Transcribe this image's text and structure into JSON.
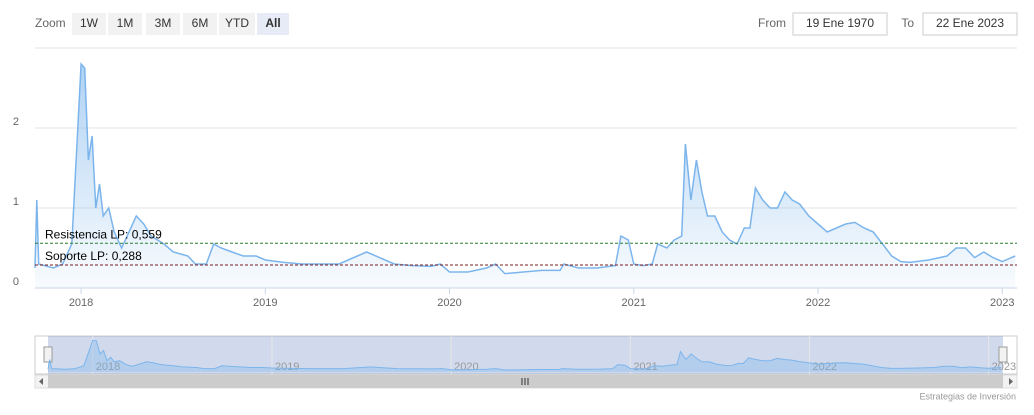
{
  "chart_data": {
    "type": "area",
    "range_selector": {
      "label": "Zoom",
      "buttons": [
        "1W",
        "1M",
        "3M",
        "6M",
        "YTD",
        "All"
      ],
      "selected": 5
    },
    "date_inputs": {
      "from_label": "From",
      "from": "19 Ene 1970",
      "to_label": "To",
      "to": "22 Ene 2023"
    },
    "x": [
      2017.75,
      2017.76,
      2017.77,
      2017.85,
      2017.9,
      2017.95,
      2018.0,
      2018.02,
      2018.04,
      2018.06,
      2018.08,
      2018.1,
      2018.12,
      2018.15,
      2018.18,
      2018.22,
      2018.26,
      2018.3,
      2018.34,
      2018.38,
      2018.45,
      2018.5,
      2018.58,
      2018.62,
      2018.68,
      2018.72,
      2018.76,
      2018.82,
      2018.88,
      2018.95,
      2019.0,
      2019.1,
      2019.2,
      2019.3,
      2019.4,
      2019.5,
      2019.55,
      2019.62,
      2019.7,
      2019.8,
      2019.9,
      2019.95,
      2020.0,
      2020.1,
      2020.2,
      2020.25,
      2020.3,
      2020.4,
      2020.5,
      2020.6,
      2020.62,
      2020.7,
      2020.8,
      2020.9,
      2020.93,
      2020.97,
      2021.0,
      2021.05,
      2021.1,
      2021.13,
      2021.18,
      2021.22,
      2021.26,
      2021.28,
      2021.31,
      2021.34,
      2021.37,
      2021.4,
      2021.44,
      2021.48,
      2021.52,
      2021.56,
      2021.6,
      2021.63,
      2021.66,
      2021.7,
      2021.74,
      2021.78,
      2021.82,
      2021.86,
      2021.9,
      2021.95,
      2022.0,
      2022.05,
      2022.1,
      2022.15,
      2022.2,
      2022.25,
      2022.3,
      2022.35,
      2022.4,
      2022.45,
      2022.5,
      2022.6,
      2022.7,
      2022.75,
      2022.8,
      2022.85,
      2022.9,
      2022.95,
      2023.0,
      2023.05,
      2023.07
    ],
    "values": [
      0.25,
      1.1,
      0.3,
      0.25,
      0.3,
      0.55,
      2.8,
      2.75,
      1.6,
      1.9,
      1.0,
      1.3,
      0.9,
      1.0,
      0.7,
      0.5,
      0.7,
      0.9,
      0.8,
      0.65,
      0.55,
      0.45,
      0.4,
      0.3,
      0.3,
      0.55,
      0.5,
      0.45,
      0.4,
      0.4,
      0.35,
      0.32,
      0.3,
      0.3,
      0.3,
      0.4,
      0.45,
      0.38,
      0.3,
      0.28,
      0.27,
      0.3,
      0.2,
      0.2,
      0.25,
      0.3,
      0.18,
      0.2,
      0.22,
      0.22,
      0.3,
      0.25,
      0.25,
      0.28,
      0.65,
      0.6,
      0.3,
      0.28,
      0.3,
      0.55,
      0.5,
      0.6,
      0.65,
      1.8,
      1.1,
      1.6,
      1.2,
      0.9,
      0.9,
      0.7,
      0.6,
      0.55,
      0.75,
      0.75,
      1.25,
      1.1,
      1.0,
      1.0,
      1.2,
      1.1,
      1.05,
      0.9,
      0.8,
      0.7,
      0.75,
      0.8,
      0.82,
      0.75,
      0.7,
      0.55,
      0.4,
      0.33,
      0.32,
      0.35,
      0.4,
      0.5,
      0.5,
      0.38,
      0.45,
      0.38,
      0.33,
      0.38,
      0.4
    ],
    "color": "#7cb5ec",
    "xlim": [
      2017.75,
      2023.08
    ],
    "xticks": [
      2018,
      2019,
      2020,
      2021,
      2022,
      2023
    ],
    "ylim": [
      0,
      3
    ],
    "yticks": [
      0,
      1,
      2
    ],
    "grid": true,
    "plot_lines": [
      {
        "value": 0.559,
        "label": "Resistencia LP: 0,559",
        "color": "#2e7d32"
      },
      {
        "value": 0.288,
        "label": "Soporte LP: 0,288",
        "color": "#7b1c1c"
      }
    ],
    "credits": "Estrategias de Inversión"
  }
}
